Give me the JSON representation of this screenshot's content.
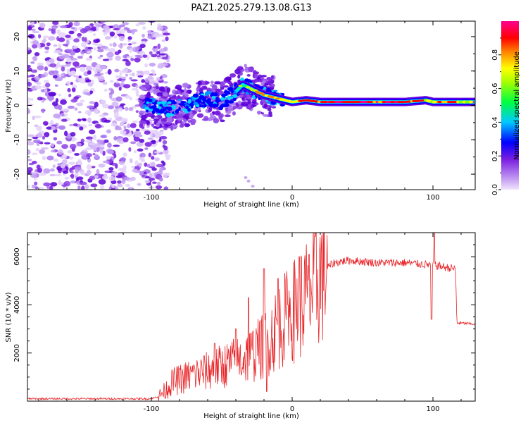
{
  "title": "PAZ1.2025.279.13.08.G13",
  "colors": {
    "snr_line": "#e8262a",
    "axis": "#000000",
    "ridge": "#0000ff"
  },
  "chart_data": [
    {
      "type": "heatmap",
      "name": "spectrogram",
      "xlabel": "Height of straight line (km)",
      "ylabel": "Frequency (Hz)",
      "xlim": [
        -188,
        130
      ],
      "ylim": [
        -24.5,
        24.5
      ],
      "xticks": [
        -100,
        0,
        100
      ],
      "yticks": [
        -20,
        -10,
        0,
        10,
        20
      ],
      "colorbar": {
        "label": "Normalized spectral amplitude",
        "range": [
          0,
          1
        ],
        "ticks": [
          0.0,
          0.2,
          0.4,
          0.6,
          0.8
        ],
        "tick_labels": [
          "0.0",
          "0.2",
          "0.4",
          "0.6",
          "0.8"
        ],
        "palette": [
          "#e8d8f8",
          "#8a2be2",
          "#0000ff",
          "#00c8ff",
          "#00ff00",
          "#ffff00",
          "#ff8000",
          "#ff0000",
          "#ff0080"
        ]
      },
      "ridge_path": {
        "x": [
          -105,
          -90,
          -75,
          -60,
          -50,
          -40,
          -35,
          -30,
          -20,
          -10,
          0,
          10,
          20,
          40,
          60,
          80,
          95,
          100,
          110,
          130
        ],
        "freq_hz": [
          0,
          -1,
          0,
          2,
          1,
          4,
          6,
          5,
          3,
          2,
          1,
          1.5,
          1,
          1,
          1,
          1,
          1.5,
          1,
          1,
          1
        ]
      }
    },
    {
      "type": "line",
      "name": "snr",
      "xlabel": "Height of straight line (km)",
      "ylabel": "SNR (10 * v/v)",
      "xlim": [
        -188,
        130
      ],
      "ylim": [
        0,
        7000
      ],
      "xticks": [
        -100,
        0,
        100
      ],
      "yticks": [
        2000,
        4000,
        6000
      ],
      "series": [
        {
          "name": "SNR",
          "envelope_x": [
            -188,
            -100,
            -95,
            -90,
            -85,
            -80,
            -70,
            -60,
            -50,
            -40,
            -30,
            -20,
            -10,
            0,
            10,
            15,
            20,
            25,
            30,
            40,
            60,
            80,
            100,
            110,
            116,
            117,
            130
          ],
          "envelope_y": [
            100,
            100,
            200,
            450,
            800,
            900,
            1100,
            1250,
            1450,
            1650,
            1900,
            2300,
            3100,
            3700,
            4300,
            4700,
            5200,
            5550,
            5750,
            5850,
            5750,
            5750,
            5650,
            5550,
            5500,
            3250,
            3200
          ],
          "spikes": [
            {
              "x": -70,
              "y": 1500
            },
            {
              "x": -55,
              "y": 2400
            },
            {
              "x": -40,
              "y": 3000
            },
            {
              "x": -31,
              "y": 4300
            },
            {
              "x": -25,
              "y": 2800
            },
            {
              "x": -20,
              "y": 5500
            },
            {
              "x": -18,
              "y": 400
            },
            {
              "x": -10,
              "y": 5100
            },
            {
              "x": -3,
              "y": 4000
            },
            {
              "x": 5,
              "y": 6000
            },
            {
              "x": 12,
              "y": 6100
            },
            {
              "x": 99,
              "y": 3400
            },
            {
              "x": 101,
              "y": 7000
            }
          ]
        }
      ]
    }
  ]
}
